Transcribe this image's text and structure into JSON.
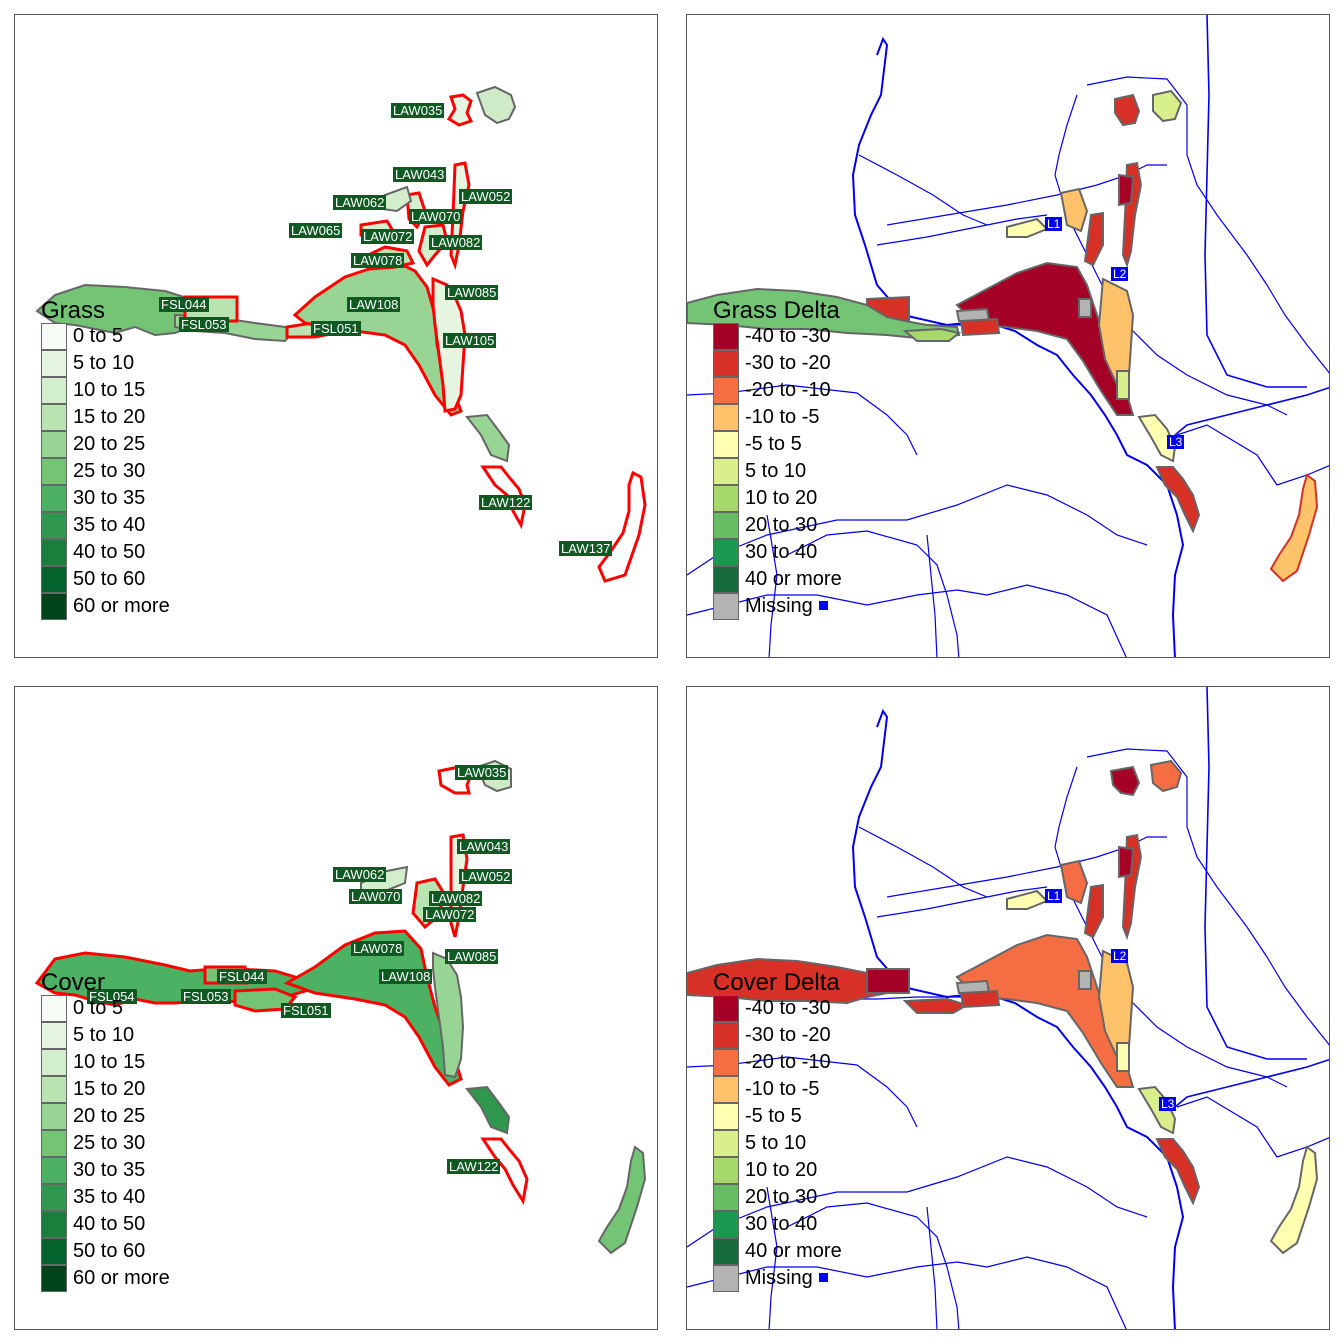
{
  "panels": {
    "grass": {
      "legend_title": "Grass",
      "site_labels": [
        "LAW035",
        "LAW043",
        "LAW052",
        "LAW062",
        "LAW070",
        "LAW065",
        "LAW072",
        "LAW082",
        "LAW078",
        "LAW085",
        "FSL044",
        "LAW108",
        "FSL053",
        "FSL051",
        "LAW105",
        "LAW122",
        "LAW137"
      ]
    },
    "grass_delta": {
      "legend_title": "Grass Delta",
      "markers": [
        "L1",
        "L2",
        "L3"
      ]
    },
    "cover": {
      "legend_title": "Cover",
      "site_labels": [
        "LAW035",
        "LAW043",
        "LAW052",
        "LAW062",
        "LAW070",
        "LAW082",
        "LAW072",
        "LAW078",
        "LAW085",
        "FSL044",
        "LAW108",
        "FSL054",
        "FSL053",
        "FSL051",
        "LAW122"
      ]
    },
    "cover_delta": {
      "legend_title": "Cover Delta",
      "markers": [
        "L1",
        "L2",
        "L3"
      ]
    }
  },
  "legend_green": [
    {
      "label": "0 to 5",
      "color": "#f7fcf5"
    },
    {
      "label": "5 to 10",
      "color": "#e5f5e0"
    },
    {
      "label": "10 to 15",
      "color": "#d3eecd"
    },
    {
      "label": "15 to 20",
      "color": "#b9e3b1"
    },
    {
      "label": "20 to 25",
      "color": "#98d494"
    },
    {
      "label": "25 to 30",
      "color": "#74c476"
    },
    {
      "label": "30 to 35",
      "color": "#4db163"
    },
    {
      "label": "35 to 40",
      "color": "#2f974e"
    },
    {
      "label": "40 to 50",
      "color": "#1a7f3c"
    },
    {
      "label": "50 to 60",
      "color": "#05632d"
    },
    {
      "label": "60 or more",
      "color": "#00441b"
    }
  ],
  "legend_delta": [
    {
      "label": "-40 to -30",
      "color": "#a50026"
    },
    {
      "label": "-30 to -20",
      "color": "#d73027"
    },
    {
      "label": "-20 to -10",
      "color": "#f46d43"
    },
    {
      "label": "-10 to -5",
      "color": "#fdc26a"
    },
    {
      "label": "-5 to 5",
      "color": "#ffffb2"
    },
    {
      "label": "5 to 10",
      "color": "#d9ef8b"
    },
    {
      "label": "10 to 20",
      "color": "#a6d96a"
    },
    {
      "label": "20 to 30",
      "color": "#66bd63"
    },
    {
      "label": "30 to 40",
      "color": "#1a9850"
    },
    {
      "label": "40 or more",
      "color": "#176b3a"
    },
    {
      "label": "Missing",
      "color": "#b3b3b3"
    }
  ],
  "colors": {
    "outline_highlight": "#ff0000",
    "rivers": "#0000ee",
    "polygon_border": "#666666"
  }
}
